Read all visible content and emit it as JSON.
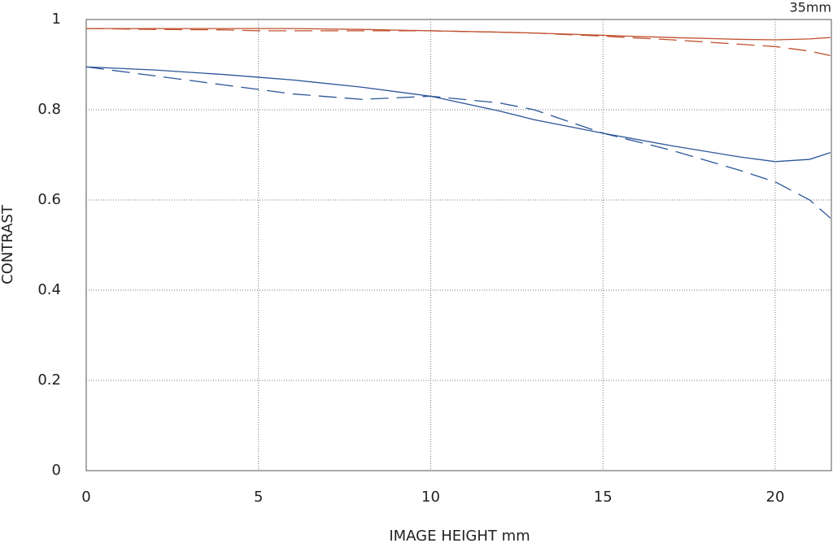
{
  "chart_data": {
    "type": "line",
    "title": "35mm",
    "x_label": "IMAGE HEIGHT  mm",
    "y_label": "CONTRAST",
    "x": [
      0,
      2,
      4,
      5,
      6,
      8,
      10,
      12,
      13,
      15,
      17,
      19,
      20,
      21,
      21.6
    ],
    "series": [
      {
        "color": "#c0502e",
        "dashed": false,
        "values": [
          0.98,
          0.98,
          0.98,
          0.98,
          0.98,
          0.978,
          0.975,
          0.972,
          0.97,
          0.965,
          0.96,
          0.956,
          0.955,
          0.957,
          0.96
        ]
      },
      {
        "color": "#c0502e",
        "dashed": true,
        "values": [
          0.98,
          0.978,
          0.977,
          0.975,
          0.975,
          0.975,
          0.975,
          0.972,
          0.97,
          0.963,
          0.955,
          0.945,
          0.94,
          0.93,
          0.92
        ]
      },
      {
        "color": "#2a5599",
        "dashed": false,
        "values": [
          0.895,
          0.888,
          0.878,
          0.872,
          0.866,
          0.85,
          0.83,
          0.797,
          0.778,
          0.748,
          0.72,
          0.695,
          0.685,
          0.69,
          0.705
        ]
      },
      {
        "color": "#2a5599",
        "dashed": true,
        "values": [
          0.895,
          0.875,
          0.855,
          0.845,
          0.835,
          0.823,
          0.83,
          0.815,
          0.8,
          0.748,
          0.71,
          0.665,
          0.64,
          0.6,
          0.56
        ]
      }
    ],
    "xlim": [
      0,
      21.63
    ],
    "ylim": [
      0,
      1
    ],
    "xticks": [
      0,
      5,
      10,
      15,
      20
    ],
    "yticks": [
      0,
      0.2,
      0.4,
      0.6,
      0.8,
      1
    ],
    "grid": true
  }
}
